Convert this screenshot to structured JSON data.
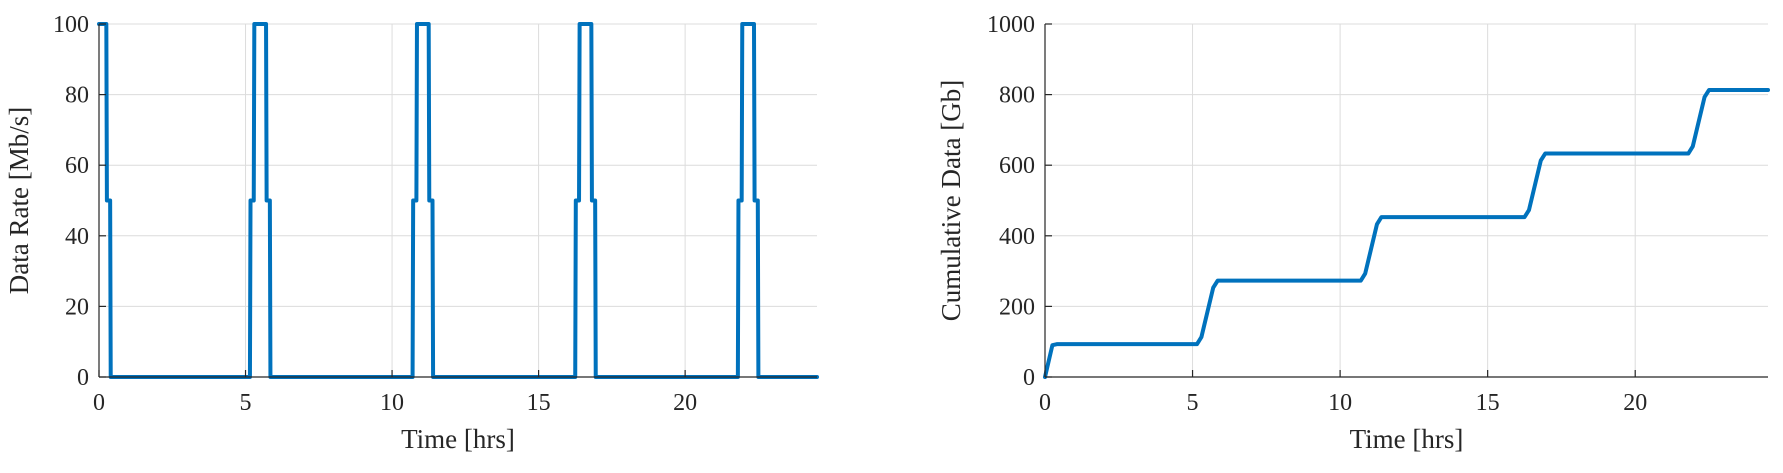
{
  "colors": {
    "series": "#0072BD",
    "grid": "#dcdcdc",
    "axis": "#262626"
  },
  "chart_data": [
    {
      "type": "line",
      "xlabel": "Time [hrs]",
      "ylabel": "Data Rate [Mb/s]",
      "xlim": [
        0,
        24.5
      ],
      "ylim": [
        0,
        100
      ],
      "xticks": [
        0,
        5,
        10,
        15,
        20
      ],
      "yticks": [
        0,
        20,
        40,
        60,
        80,
        100
      ],
      "grid": true,
      "series": [
        {
          "x": [
            0,
            0.08,
            0.1,
            0.25,
            0.27,
            0.38,
            0.4,
            5.15,
            5.17,
            5.28,
            5.3,
            5.7,
            5.72,
            5.83,
            5.85,
            10.7,
            10.72,
            10.83,
            10.85,
            11.25,
            11.27,
            11.38,
            11.4,
            16.25,
            16.27,
            16.38,
            16.4,
            16.8,
            16.82,
            16.93,
            16.95,
            21.8,
            21.82,
            21.93,
            21.95,
            22.35,
            22.37,
            22.48,
            22.5,
            24.5
          ],
          "y": [
            100,
            100,
            100,
            100,
            50,
            50,
            0,
            0,
            50,
            50,
            100,
            100,
            50,
            50,
            0,
            0,
            50,
            50,
            100,
            100,
            50,
            50,
            0,
            0,
            50,
            50,
            100,
            100,
            50,
            50,
            0,
            0,
            50,
            50,
            100,
            100,
            50,
            50,
            0,
            0
          ]
        }
      ]
    },
    {
      "type": "line",
      "xlabel": "Time [hrs]",
      "ylabel": "Cumulative Data [Gb]",
      "xlim": [
        0,
        24.5
      ],
      "ylim": [
        0,
        1000
      ],
      "xticks": [
        0,
        5,
        10,
        15,
        20
      ],
      "yticks": [
        0,
        200,
        400,
        600,
        800,
        1000
      ],
      "grid": true,
      "series": [
        {
          "x": [
            0,
            0.25,
            0.4,
            5.15,
            5.3,
            5.7,
            5.85,
            10.7,
            10.85,
            11.25,
            11.4,
            16.25,
            16.4,
            16.8,
            16.95,
            21.8,
            21.95,
            22.35,
            22.5,
            24.5
          ],
          "y": [
            0,
            90,
            93,
            93,
            113,
            253,
            273,
            273,
            293,
            433,
            453,
            453,
            473,
            613,
            633,
            633,
            653,
            793,
            813,
            813
          ]
        }
      ]
    }
  ]
}
